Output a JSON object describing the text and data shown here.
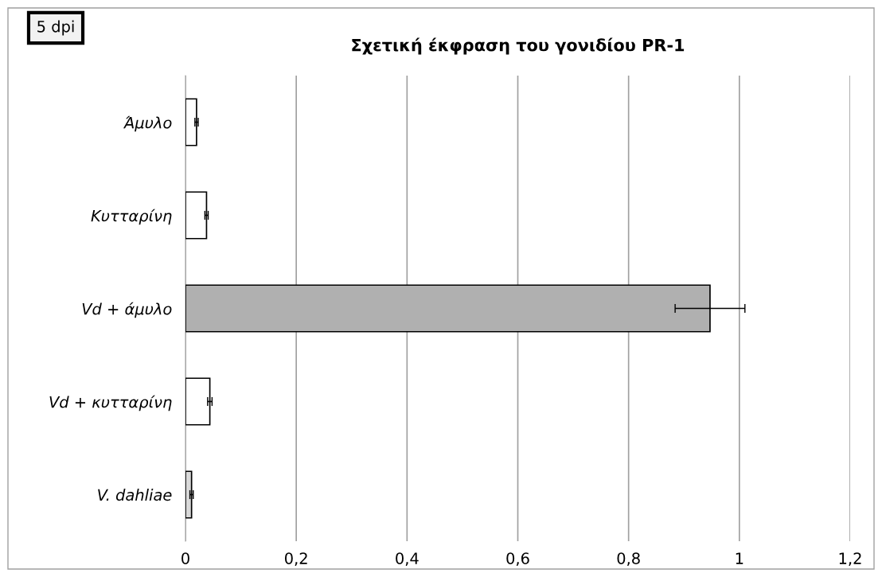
{
  "chart_data": {
    "type": "bar",
    "orientation": "horizontal",
    "title": "Σχετική έκφραση του γονιδίου PR-1",
    "annotations": [
      "5 dpi"
    ],
    "categories": [
      "Άμυλο",
      "Κυτταρίνη",
      "Vd + άμυλο",
      "Vd + κυτταρίνη",
      "V. dahliae"
    ],
    "values": [
      0.02,
      0.038,
      0.947,
      0.044,
      0.011
    ],
    "errors": [
      0.003,
      0.003,
      0.063,
      0.004,
      0.003
    ],
    "colors": [
      "#ffffff",
      "#ffffff",
      "#b0b0b0",
      "#ffffff",
      "#d9d9d9"
    ],
    "xlim": [
      0,
      1.2
    ],
    "xticks": [
      0,
      {
        "value": 0.2,
        "label": "0,2"
      },
      {
        "value": 0.4,
        "label": "0,4"
      },
      {
        "value": 0.6,
        "label": "0,6"
      },
      {
        "value": 0.8,
        "label": "0,8"
      },
      1,
      {
        "value": 1.2,
        "label": "1,2"
      }
    ],
    "grid": "x"
  }
}
